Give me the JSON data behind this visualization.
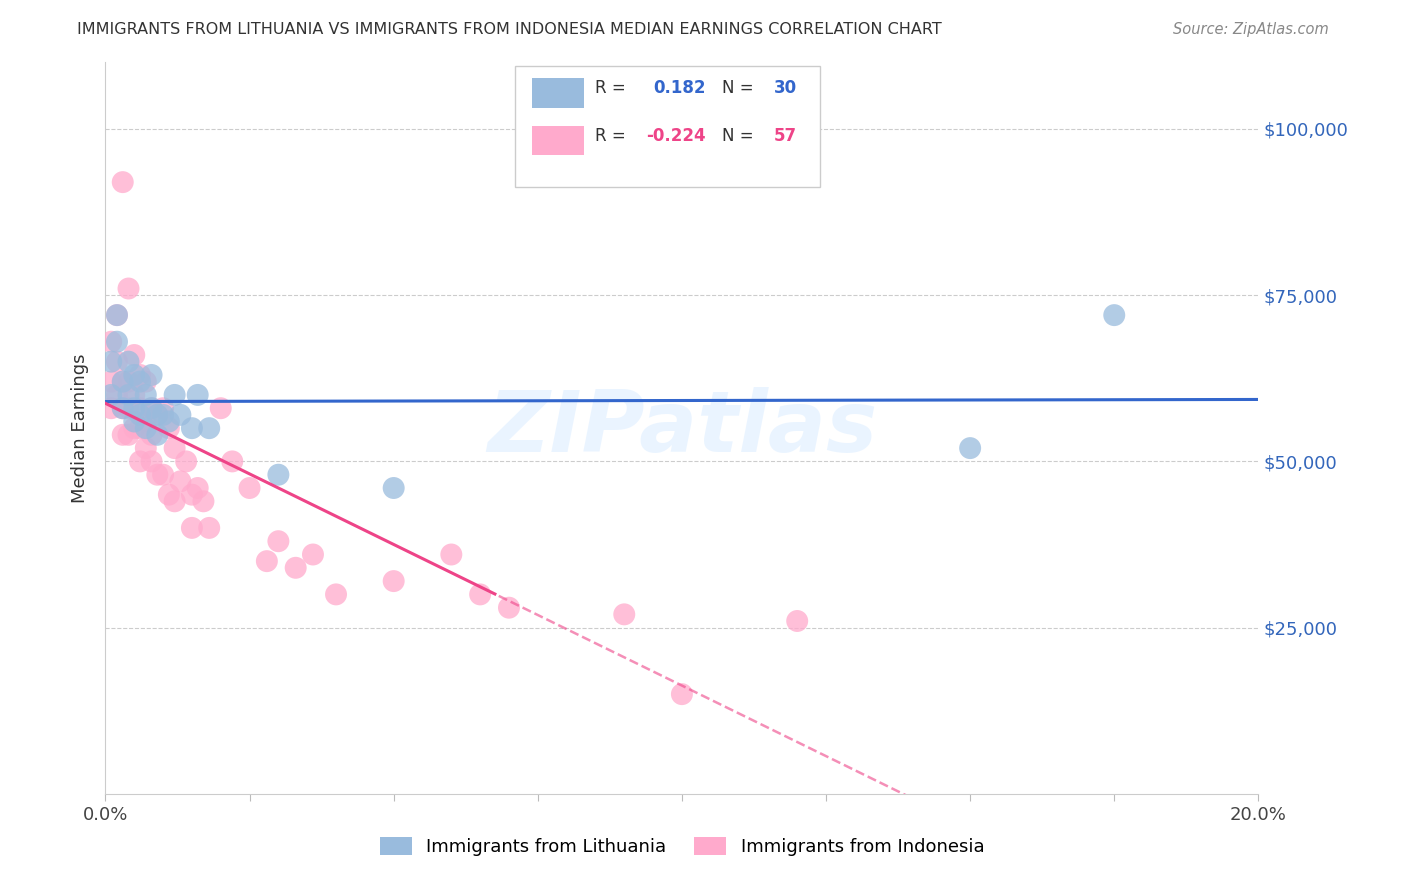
{
  "title": "IMMIGRANTS FROM LITHUANIA VS IMMIGRANTS FROM INDONESIA MEDIAN EARNINGS CORRELATION CHART",
  "source": "Source: ZipAtlas.com",
  "ylabel": "Median Earnings",
  "ytick_labels": [
    "$25,000",
    "$50,000",
    "$75,000",
    "$100,000"
  ],
  "ytick_values": [
    25000,
    50000,
    75000,
    100000
  ],
  "ylim": [
    0,
    110000
  ],
  "xlim": [
    0.0,
    0.2
  ],
  "R_lithuania": 0.182,
  "N_lithuania": 30,
  "R_indonesia": -0.224,
  "N_indonesia": 57,
  "color_lithuania": "#99BBDD",
  "color_indonesia": "#FFAACC",
  "color_line_lithuania": "#3366CC",
  "color_line_indonesia": "#EE4488",
  "background": "#FFFFFF",
  "legend_solid_cutoff": 0.068,
  "lithuania_x": [
    0.001,
    0.001,
    0.002,
    0.002,
    0.003,
    0.003,
    0.004,
    0.004,
    0.005,
    0.005,
    0.005,
    0.006,
    0.006,
    0.007,
    0.007,
    0.008,
    0.008,
    0.009,
    0.009,
    0.01,
    0.011,
    0.012,
    0.013,
    0.015,
    0.016,
    0.018,
    0.03,
    0.05,
    0.15,
    0.175
  ],
  "lithuania_y": [
    60000,
    65000,
    68000,
    72000,
    62000,
    58000,
    65000,
    60000,
    63000,
    58000,
    56000,
    62000,
    57000,
    60000,
    55000,
    63000,
    58000,
    57000,
    54000,
    57000,
    56000,
    60000,
    57000,
    55000,
    60000,
    55000,
    48000,
    46000,
    52000,
    72000
  ],
  "indonesia_x": [
    0.001,
    0.001,
    0.001,
    0.002,
    0.002,
    0.002,
    0.003,
    0.003,
    0.003,
    0.003,
    0.004,
    0.004,
    0.004,
    0.004,
    0.005,
    0.005,
    0.005,
    0.006,
    0.006,
    0.006,
    0.006,
    0.007,
    0.007,
    0.007,
    0.008,
    0.008,
    0.008,
    0.009,
    0.009,
    0.01,
    0.01,
    0.011,
    0.011,
    0.012,
    0.012,
    0.013,
    0.014,
    0.015,
    0.015,
    0.016,
    0.017,
    0.018,
    0.02,
    0.022,
    0.025,
    0.028,
    0.03,
    0.033,
    0.036,
    0.04,
    0.05,
    0.06,
    0.065,
    0.07,
    0.09,
    0.1,
    0.12
  ],
  "indonesia_y": [
    68000,
    62000,
    58000,
    72000,
    65000,
    60000,
    92000,
    62000,
    58000,
    54000,
    76000,
    62000,
    58000,
    54000,
    66000,
    60000,
    55000,
    63000,
    58000,
    55000,
    50000,
    62000,
    56000,
    52000,
    58000,
    54000,
    50000,
    57000,
    48000,
    58000,
    48000,
    55000,
    45000,
    52000,
    44000,
    47000,
    50000,
    45000,
    40000,
    46000,
    44000,
    40000,
    58000,
    50000,
    46000,
    35000,
    38000,
    34000,
    36000,
    30000,
    32000,
    36000,
    30000,
    28000,
    27000,
    15000,
    26000
  ]
}
